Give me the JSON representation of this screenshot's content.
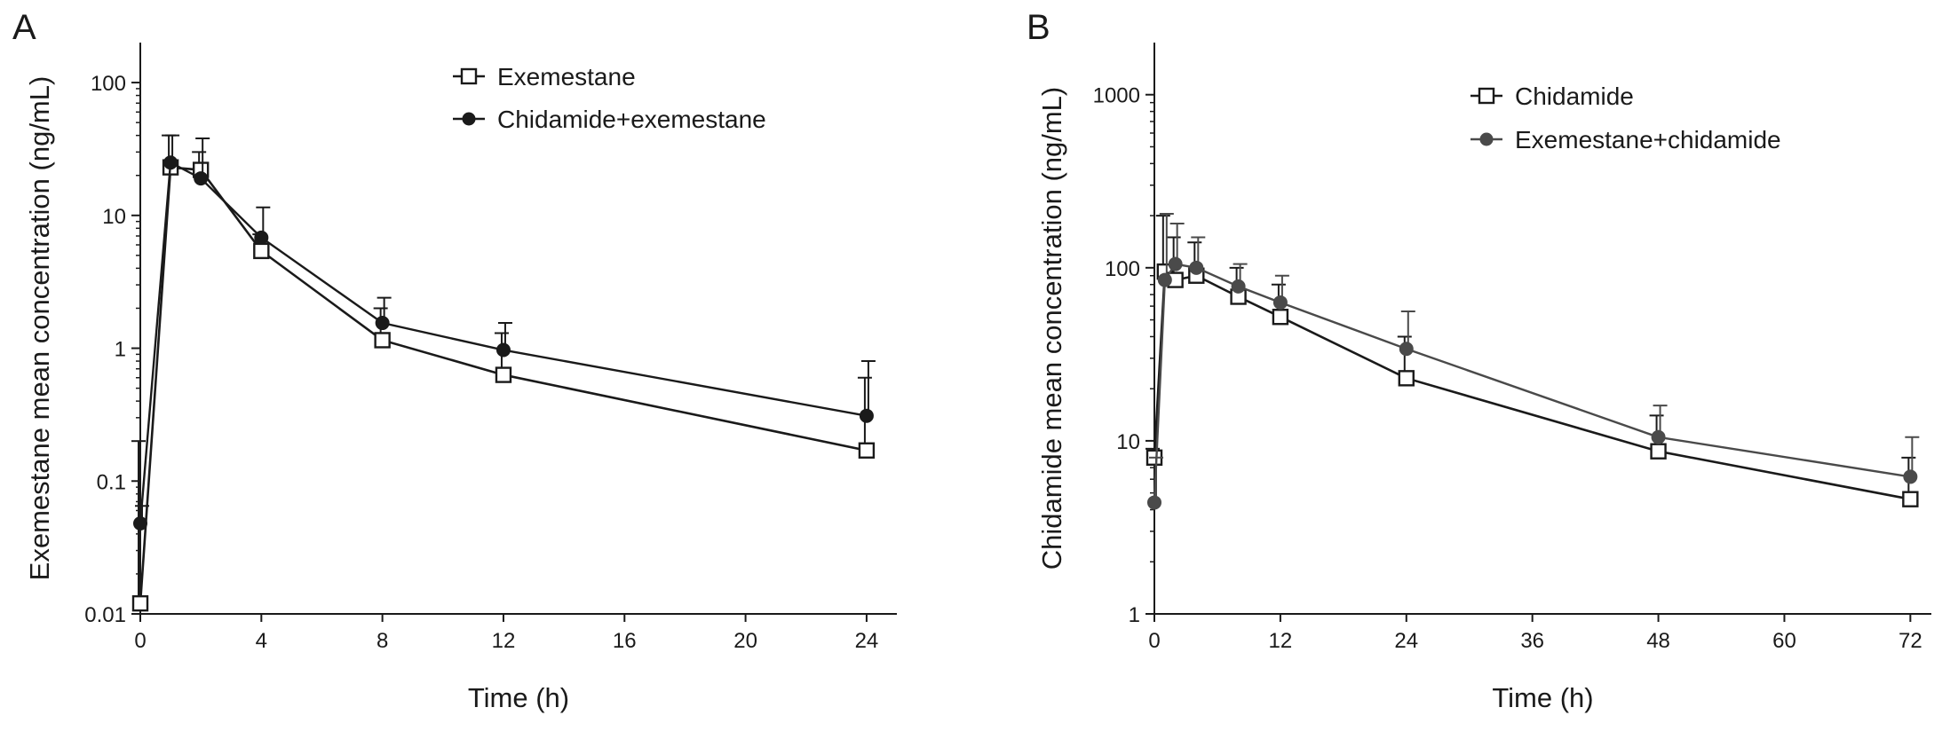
{
  "chart_data": [
    {
      "panel": "A",
      "type": "line",
      "title": "",
      "xlabel": "Time (h)",
      "ylabel": "Exemestane mean concentration (ng/mL)",
      "yscale": "log",
      "xlim": [
        0,
        25
      ],
      "ylim": [
        0.01,
        200
      ],
      "xticks": [
        0,
        4,
        8,
        12,
        16,
        20,
        24
      ],
      "xtick_labels": [
        "0",
        "4",
        "8",
        "12",
        "16",
        "20",
        "24"
      ],
      "yticks": [
        0.01,
        0.1,
        1,
        10,
        100
      ],
      "ytick_labels": [
        "0.01",
        "0.1",
        "1",
        "10",
        "100"
      ],
      "grid": false,
      "legend_position": "top-center",
      "series": [
        {
          "name": "Exemestane",
          "marker": "open-square",
          "color": "#1a1a1a",
          "x": [
            0,
            1,
            2,
            4,
            8,
            12,
            24
          ],
          "y": [
            0.012,
            23,
            22,
            5.4,
            1.15,
            0.63,
            0.17
          ],
          "err_upper": [
            0.2,
            40,
            30,
            7.2,
            2.0,
            1.3,
            0.6
          ]
        },
        {
          "name": "Chidamide+exemestane",
          "marker": "filled-circle",
          "color": "#1a1a1a",
          "x": [
            0,
            1,
            2,
            4,
            8,
            12,
            24
          ],
          "y": [
            0.048,
            25,
            19,
            6.8,
            1.55,
            0.97,
            0.31
          ],
          "err_upper": [
            0.065,
            40,
            38,
            11.5,
            2.4,
            1.55,
            0.8
          ]
        }
      ]
    },
    {
      "panel": "B",
      "type": "line",
      "title": "",
      "xlabel": "Time (h)",
      "ylabel": "Chidamide mean concentration (ng/mL)",
      "yscale": "log",
      "xlim": [
        0,
        74
      ],
      "ylim": [
        1,
        2000
      ],
      "xticks": [
        0,
        12,
        24,
        36,
        48,
        60,
        72
      ],
      "xtick_labels": [
        "0",
        "12",
        "24",
        "36",
        "48",
        "60",
        "72"
      ],
      "yticks": [
        1,
        10,
        100,
        1000
      ],
      "ytick_labels": [
        "1",
        "10",
        "100",
        "1000"
      ],
      "grid": false,
      "legend_position": "top-center",
      "series": [
        {
          "name": "Chidamide",
          "marker": "open-square",
          "color": "#1a1a1a",
          "x": [
            0,
            1,
            2,
            4,
            8,
            12,
            24,
            48,
            72
          ],
          "y": [
            8,
            95,
            85,
            90,
            68,
            52,
            23,
            8.7,
            4.6
          ],
          "err_upper": [
            9,
            200,
            150,
            140,
            100,
            80,
            40,
            14,
            8
          ]
        },
        {
          "name": "Exemestane+chidamide",
          "marker": "filled-circle",
          "color": "#4a4a4a",
          "x": [
            0,
            1,
            2,
            4,
            8,
            12,
            24,
            48,
            72
          ],
          "y": [
            4.4,
            85,
            105,
            100,
            78,
            63,
            34,
            10.5,
            6.2
          ],
          "err_upper": [
            8,
            205,
            180,
            150,
            105,
            90,
            56,
            16,
            10.5
          ]
        }
      ]
    }
  ]
}
